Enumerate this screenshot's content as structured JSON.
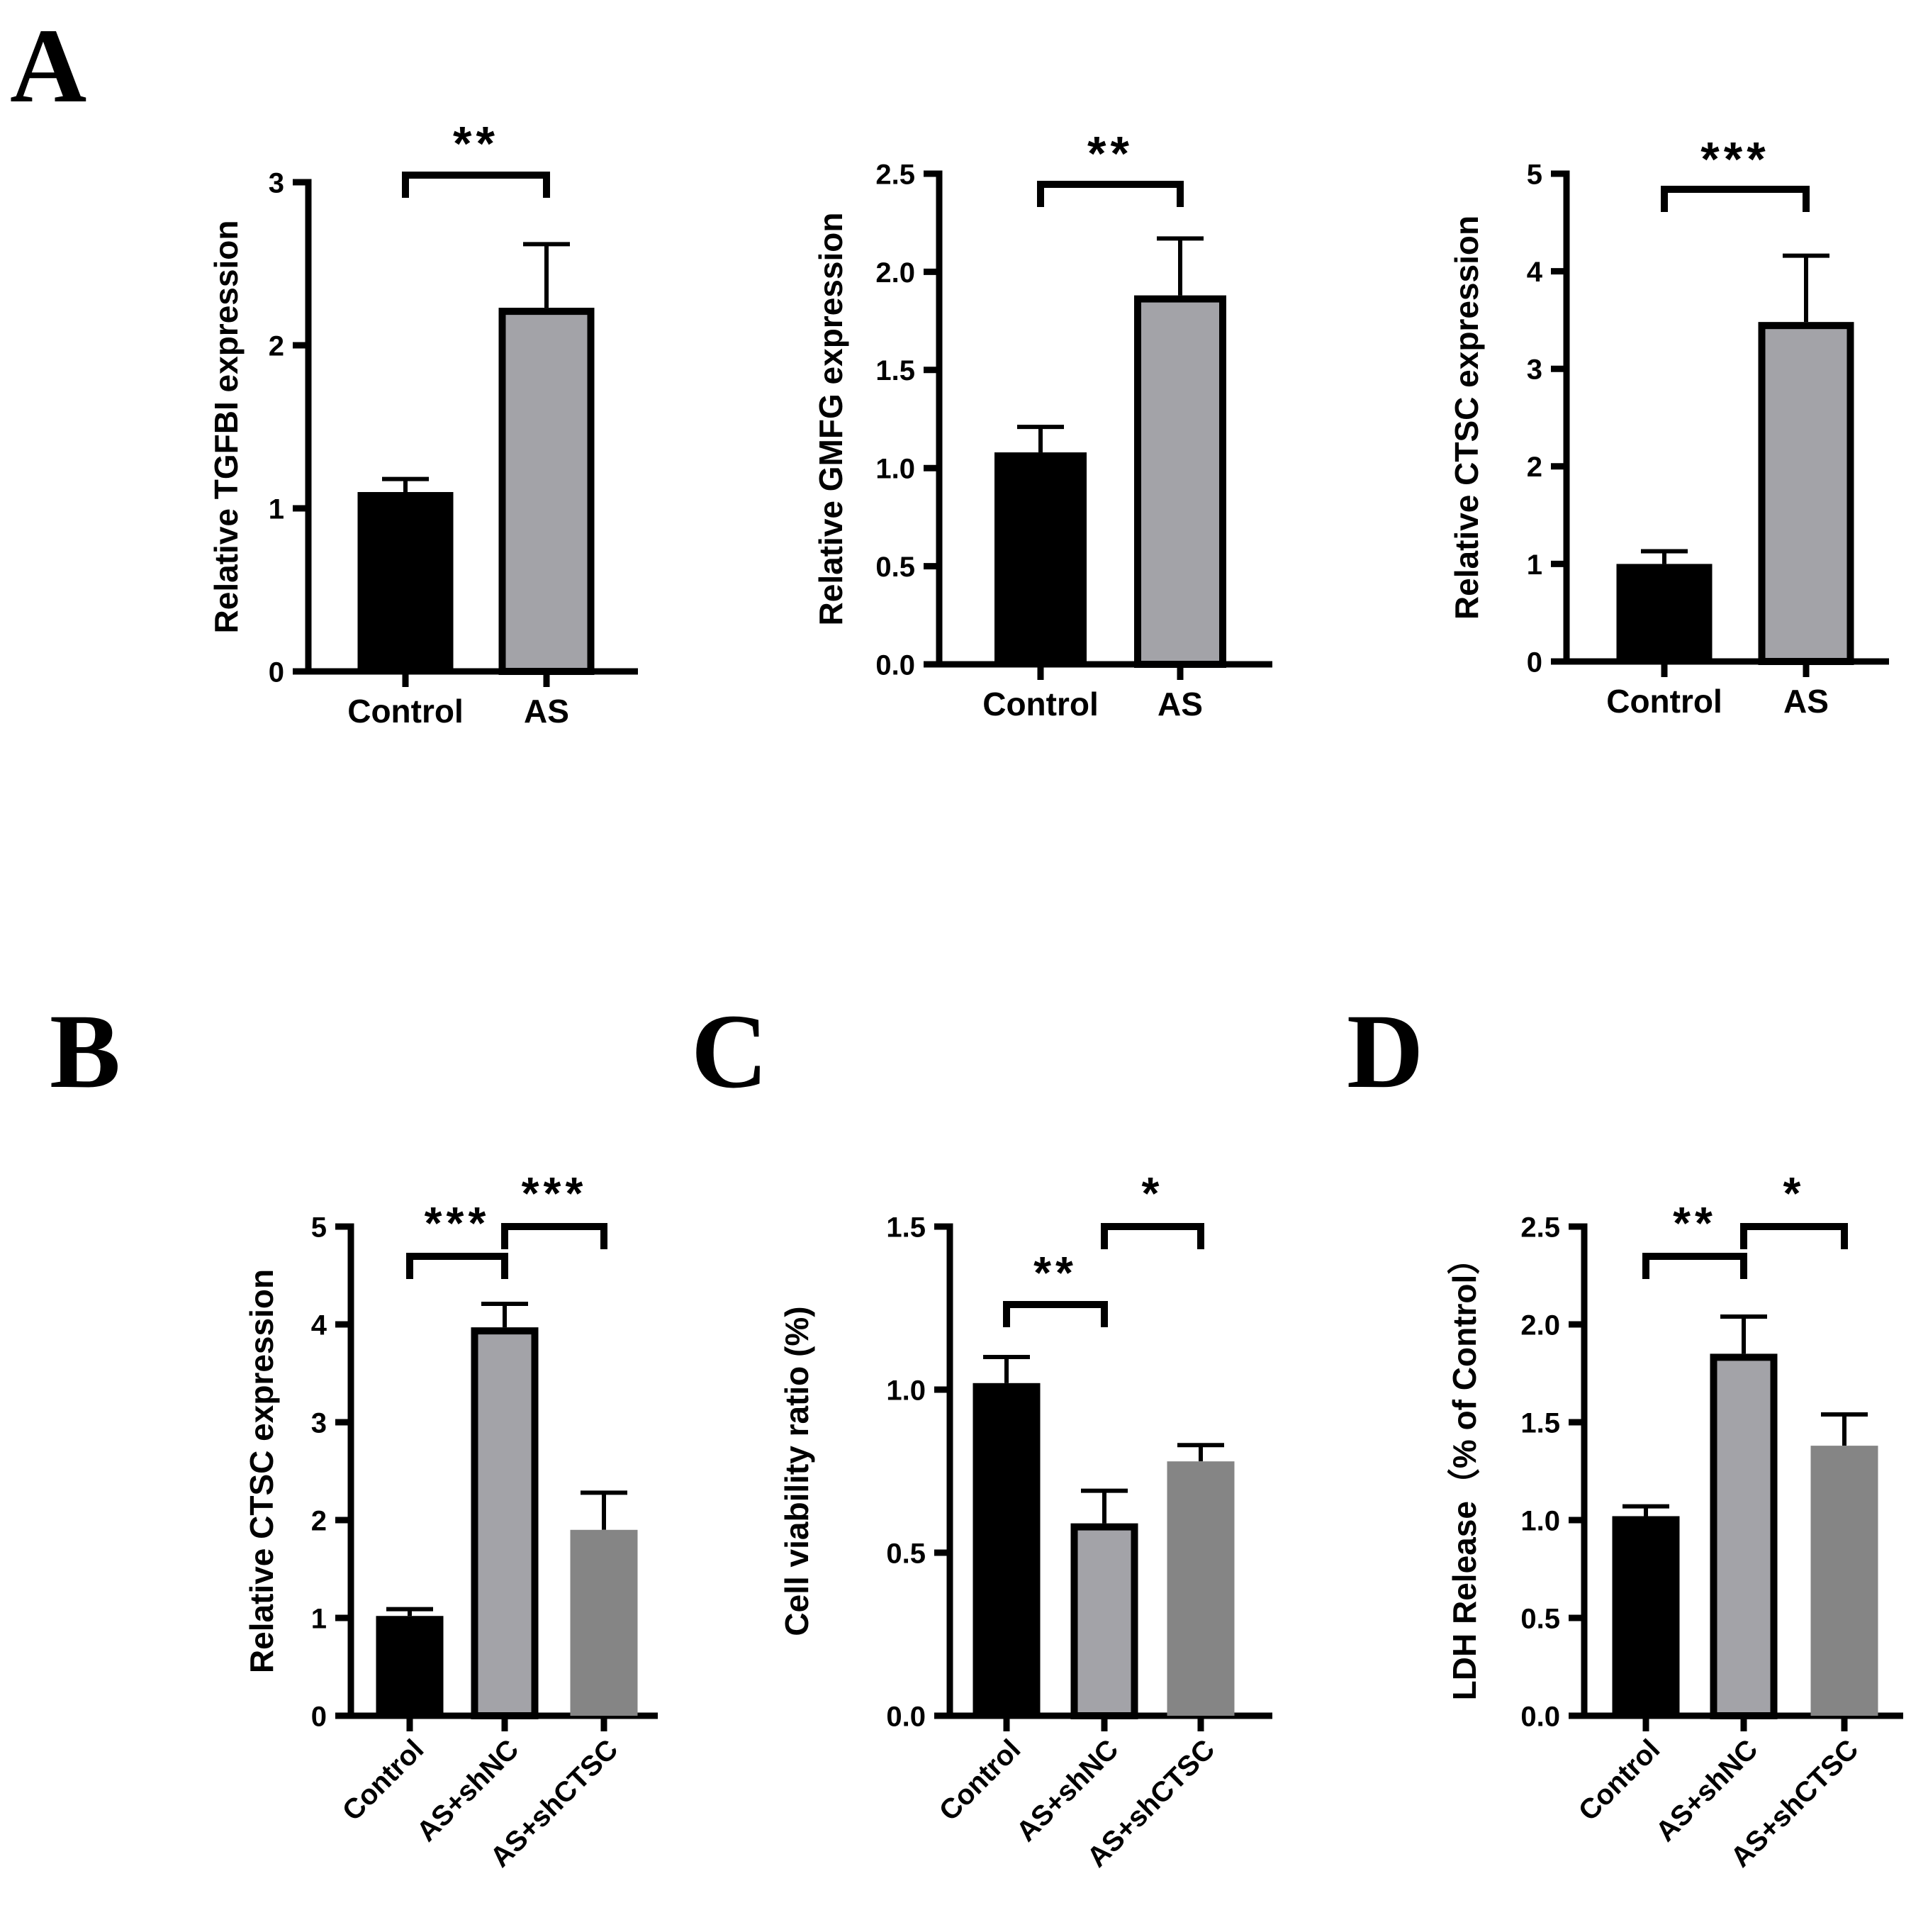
{
  "panel_labels": {
    "A": "A",
    "B": "B",
    "C": "C",
    "D": "D"
  },
  "colors": {
    "control": "#000000",
    "as": "#a3a3a8",
    "shctsc": "#858585",
    "axis": "#000000"
  },
  "chart_data": [
    {
      "type": "bar",
      "panel": "A1",
      "title": "",
      "xlabel": "",
      "ylabel": "Relative TGFBI expression",
      "categories": [
        "Control",
        "AS"
      ],
      "values": [
        1.1,
        2.23
      ],
      "errors": [
        0.08,
        0.39
      ],
      "ylim": [
        0,
        3
      ],
      "yticks": [
        0,
        1,
        2,
        3
      ],
      "ytick_labels": [
        "0",
        "1",
        "2",
        "3"
      ],
      "significance": [
        {
          "from": 0,
          "to": 1,
          "label": "**"
        }
      ]
    },
    {
      "type": "bar",
      "panel": "A2",
      "title": "",
      "xlabel": "",
      "ylabel": "Relative GMFG expression",
      "categories": [
        "Control",
        "AS"
      ],
      "values": [
        1.08,
        1.88
      ],
      "errors": [
        0.13,
        0.29
      ],
      "ylim": [
        0,
        2.5
      ],
      "yticks": [
        0,
        0.5,
        1.0,
        1.5,
        2.0,
        2.5
      ],
      "ytick_labels": [
        "0.0",
        "0.5",
        "1.0",
        "1.5",
        "2.0",
        "2.5"
      ],
      "significance": [
        {
          "from": 0,
          "to": 1,
          "label": "**"
        }
      ]
    },
    {
      "type": "bar",
      "panel": "A3",
      "title": "",
      "xlabel": "",
      "ylabel": "Relative CTSC expression",
      "categories": [
        "Control",
        "AS"
      ],
      "values": [
        1.0,
        3.48
      ],
      "errors": [
        0.13,
        0.68
      ],
      "ylim": [
        0,
        5
      ],
      "yticks": [
        0,
        1,
        2,
        3,
        4,
        5
      ],
      "ytick_labels": [
        "0",
        "1",
        "2",
        "3",
        "4",
        "5"
      ],
      "significance": [
        {
          "from": 0,
          "to": 1,
          "label": "***"
        }
      ]
    },
    {
      "type": "bar",
      "panel": "B",
      "title": "",
      "xlabel": "",
      "ylabel": "Relative CTSC expression",
      "categories": [
        "Control",
        "AS+shNC",
        "AS+shCTSC"
      ],
      "values": [
        1.02,
        3.97,
        1.9
      ],
      "errors": [
        0.07,
        0.24,
        0.38
      ],
      "ylim": [
        0,
        5
      ],
      "yticks": [
        0,
        1,
        2,
        3,
        4,
        5
      ],
      "ytick_labels": [
        "0",
        "1",
        "2",
        "3",
        "4",
        "5"
      ],
      "significance": [
        {
          "from": 0,
          "to": 1,
          "label": "***"
        },
        {
          "from": 1,
          "to": 2,
          "label": "***"
        }
      ]
    },
    {
      "type": "bar",
      "panel": "C",
      "title": "",
      "xlabel": "",
      "ylabel": "Cell viability ratio (%)",
      "categories": [
        "Control",
        "AS+shNC",
        "AS+shCTSC"
      ],
      "values": [
        1.02,
        0.59,
        0.78
      ],
      "errors": [
        0.08,
        0.1,
        0.05
      ],
      "ylim": [
        0,
        1.5
      ],
      "yticks": [
        0,
        0.5,
        1.0,
        1.5
      ],
      "ytick_labels": [
        "0.0",
        "0.5",
        "1.0",
        "1.5"
      ],
      "significance": [
        {
          "from": 0,
          "to": 1,
          "label": "**"
        },
        {
          "from": 1,
          "to": 2,
          "label": "*"
        }
      ]
    },
    {
      "type": "bar",
      "panel": "D",
      "title": "",
      "xlabel": "",
      "ylabel": "LDH Release（% of Control）",
      "categories": [
        "Control",
        "AS+shNC",
        "AS+shCTSC"
      ],
      "values": [
        1.02,
        1.85,
        1.38
      ],
      "errors": [
        0.05,
        0.19,
        0.16
      ],
      "ylim": [
        0,
        2.5
      ],
      "yticks": [
        0,
        0.5,
        1.0,
        1.5,
        2.0,
        2.5
      ],
      "ytick_labels": [
        "0.0",
        "0.5",
        "1.0",
        "1.5",
        "2.0",
        "2.5"
      ],
      "significance": [
        {
          "from": 0,
          "to": 1,
          "label": "**"
        },
        {
          "from": 1,
          "to": 2,
          "label": "*"
        }
      ]
    }
  ]
}
